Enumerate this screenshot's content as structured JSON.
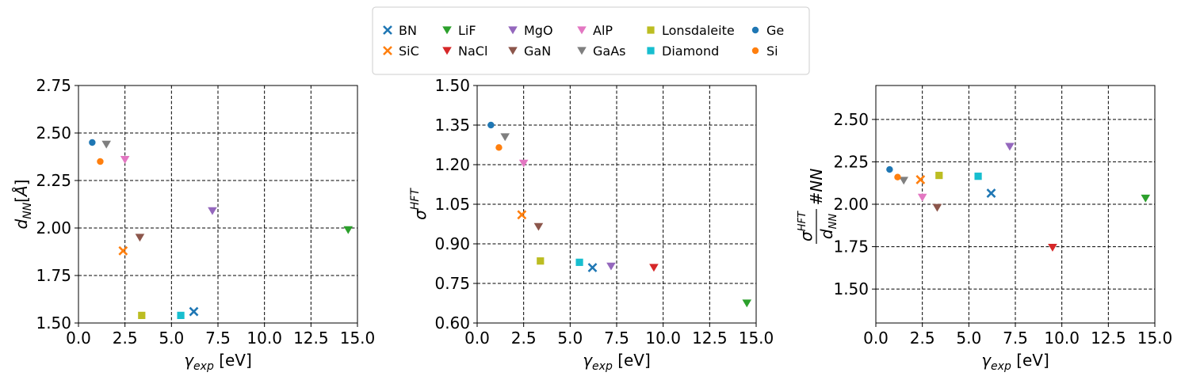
{
  "legend": {
    "entries": [
      {
        "name": "BN",
        "marker": "x",
        "color": "#1f77b4"
      },
      {
        "name": "SiC",
        "marker": "x",
        "color": "#ff7f0e"
      },
      {
        "name": "LiF",
        "marker": "v",
        "color": "#2ca02c"
      },
      {
        "name": "NaCl",
        "marker": "v",
        "color": "#d62728"
      },
      {
        "name": "MgO",
        "marker": "v",
        "color": "#9467bd"
      },
      {
        "name": "GaN",
        "marker": "v",
        "color": "#8c564b"
      },
      {
        "name": "AlP",
        "marker": "v",
        "color": "#e377c2"
      },
      {
        "name": "GaAs",
        "marker": "v",
        "color": "#7f7f7f"
      },
      {
        "name": "Lonsdaleite",
        "marker": "s",
        "color": "#bcbd22"
      },
      {
        "name": "Diamond",
        "marker": "s",
        "color": "#17becf"
      },
      {
        "name": "Ge",
        "marker": "o",
        "color": "#1f77b4"
      },
      {
        "name": "Si",
        "marker": "o",
        "color": "#ff7f0e"
      }
    ]
  },
  "chart_data": [
    {
      "type": "scatter",
      "title": "",
      "xlabel": "γ_exp [eV]",
      "ylabel": "d_NN[Å]",
      "xlim": [
        0,
        15
      ],
      "ylim": [
        1.5,
        2.75
      ],
      "xticks": [
        "0.0",
        "2.5",
        "5.0",
        "7.5",
        "10.0",
        "12.5",
        "15.0"
      ],
      "yticks": [
        "1.50",
        "1.75",
        "2.00",
        "2.25",
        "2.50",
        "2.75"
      ],
      "grid": true,
      "points": [
        {
          "name": "BN",
          "x": 6.2,
          "y": 1.56
        },
        {
          "name": "SiC",
          "x": 2.4,
          "y": 1.88
        },
        {
          "name": "LiF",
          "x": 14.5,
          "y": 1.99
        },
        {
          "name": "MgO",
          "x": 7.2,
          "y": 2.09
        },
        {
          "name": "GaN",
          "x": 3.3,
          "y": 1.95
        },
        {
          "name": "AlP",
          "x": 2.5,
          "y": 2.36
        },
        {
          "name": "GaAs",
          "x": 1.5,
          "y": 2.44
        },
        {
          "name": "Lonsdaleite",
          "x": 3.4,
          "y": 1.54
        },
        {
          "name": "Diamond",
          "x": 5.5,
          "y": 1.54
        },
        {
          "name": "Ge",
          "x": 0.74,
          "y": 2.45
        },
        {
          "name": "Si",
          "x": 1.17,
          "y": 2.35
        }
      ]
    },
    {
      "type": "scatter",
      "title": "",
      "xlabel": "γ_exp [eV]",
      "ylabel": "σ^HFT",
      "xlim": [
        0,
        15
      ],
      "ylim": [
        0.6,
        1.5
      ],
      "xticks": [
        "0.0",
        "2.5",
        "5.0",
        "7.5",
        "10.0",
        "12.5",
        "15.0"
      ],
      "yticks": [
        "0.60",
        "0.75",
        "0.90",
        "1.05",
        "1.20",
        "1.35",
        "1.50"
      ],
      "grid": true,
      "points": [
        {
          "name": "BN",
          "x": 6.2,
          "y": 0.81
        },
        {
          "name": "SiC",
          "x": 2.4,
          "y": 1.01
        },
        {
          "name": "LiF",
          "x": 14.5,
          "y": 0.675
        },
        {
          "name": "NaCl",
          "x": 9.5,
          "y": 0.81
        },
        {
          "name": "MgO",
          "x": 7.2,
          "y": 0.815
        },
        {
          "name": "GaN",
          "x": 3.3,
          "y": 0.965
        },
        {
          "name": "AlP",
          "x": 2.5,
          "y": 1.205
        },
        {
          "name": "GaAs",
          "x": 1.5,
          "y": 1.305
        },
        {
          "name": "Lonsdaleite",
          "x": 3.4,
          "y": 0.835
        },
        {
          "name": "Diamond",
          "x": 5.5,
          "y": 0.83
        },
        {
          "name": "Ge",
          "x": 0.74,
          "y": 1.35
        },
        {
          "name": "Si",
          "x": 1.17,
          "y": 1.265
        }
      ]
    },
    {
      "type": "scatter",
      "title": "",
      "xlabel": "γ_exp [eV]",
      "ylabel": "(σ^HFT / d_NN) #NN",
      "xlim": [
        0,
        15
      ],
      "ylim": [
        1.3,
        2.7
      ],
      "xticks": [
        "0.0",
        "2.5",
        "5.0",
        "7.5",
        "10.0",
        "12.5",
        "15.0"
      ],
      "yticks": [
        "1.50",
        "1.75",
        "2.00",
        "2.25",
        "2.50"
      ],
      "grid": true,
      "points": [
        {
          "name": "BN",
          "x": 6.2,
          "y": 2.065
        },
        {
          "name": "SiC",
          "x": 2.4,
          "y": 2.145
        },
        {
          "name": "LiF",
          "x": 14.5,
          "y": 2.035
        },
        {
          "name": "NaCl",
          "x": 9.5,
          "y": 1.745
        },
        {
          "name": "MgO",
          "x": 7.2,
          "y": 2.34
        },
        {
          "name": "GaN",
          "x": 3.3,
          "y": 1.98
        },
        {
          "name": "AlP",
          "x": 2.5,
          "y": 2.04
        },
        {
          "name": "GaAs",
          "x": 1.5,
          "y": 2.14
        },
        {
          "name": "Lonsdaleite",
          "x": 3.4,
          "y": 2.17
        },
        {
          "name": "Diamond",
          "x": 5.5,
          "y": 2.165
        },
        {
          "name": "Ge",
          "x": 0.74,
          "y": 2.205
        },
        {
          "name": "Si",
          "x": 1.17,
          "y": 2.16
        }
      ]
    }
  ]
}
